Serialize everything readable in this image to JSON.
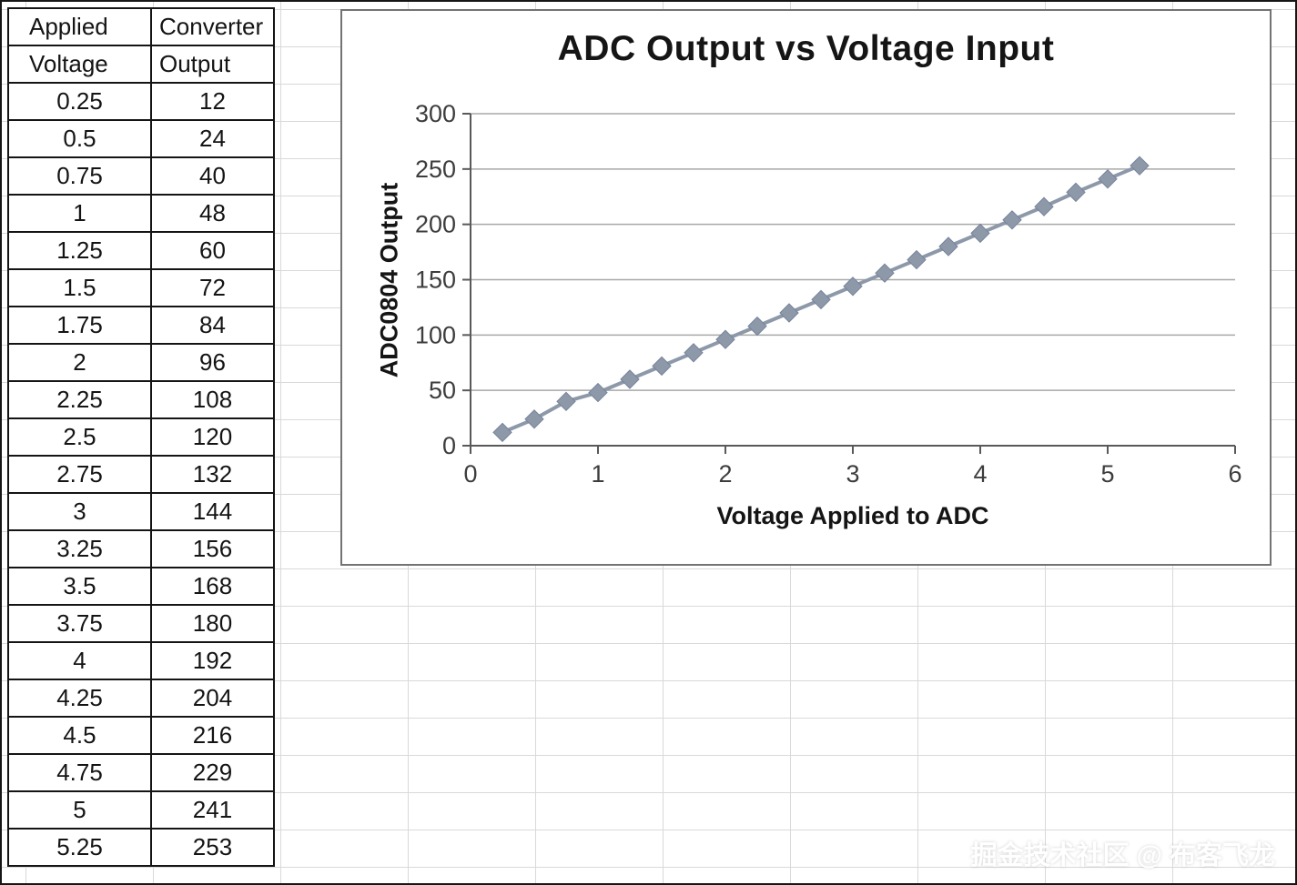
{
  "table": {
    "header": {
      "col1_line1": "Applied",
      "col1_line2": "Voltage",
      "col2_line1": "Converter",
      "col2_line2": "Output"
    },
    "rows": [
      {
        "voltage": "0.25",
        "output": "12"
      },
      {
        "voltage": "0.5",
        "output": "24"
      },
      {
        "voltage": "0.75",
        "output": "40"
      },
      {
        "voltage": "1",
        "output": "48"
      },
      {
        "voltage": "1.25",
        "output": "60"
      },
      {
        "voltage": "1.5",
        "output": "72"
      },
      {
        "voltage": "1.75",
        "output": "84"
      },
      {
        "voltage": "2",
        "output": "96"
      },
      {
        "voltage": "2.25",
        "output": "108"
      },
      {
        "voltage": "2.5",
        "output": "120"
      },
      {
        "voltage": "2.75",
        "output": "132"
      },
      {
        "voltage": "3",
        "output": "144"
      },
      {
        "voltage": "3.25",
        "output": "156"
      },
      {
        "voltage": "3.5",
        "output": "168"
      },
      {
        "voltage": "3.75",
        "output": "180"
      },
      {
        "voltage": "4",
        "output": "192"
      },
      {
        "voltage": "4.25",
        "output": "204"
      },
      {
        "voltage": "4.5",
        "output": "216"
      },
      {
        "voltage": "4.75",
        "output": "229"
      },
      {
        "voltage": "5",
        "output": "241"
      },
      {
        "voltage": "5.25",
        "output": "253"
      }
    ]
  },
  "chart_data": {
    "type": "line",
    "title": "ADC Output vs Voltage Input",
    "xlabel": "Voltage Applied to ADC",
    "ylabel": "ADC0804 Output",
    "x": [
      0.25,
      0.5,
      0.75,
      1,
      1.25,
      1.5,
      1.75,
      2,
      2.25,
      2.5,
      2.75,
      3,
      3.25,
      3.5,
      3.75,
      4,
      4.25,
      4.5,
      4.75,
      5,
      5.25
    ],
    "y": [
      12,
      24,
      40,
      48,
      60,
      72,
      84,
      96,
      108,
      120,
      132,
      144,
      156,
      168,
      180,
      192,
      204,
      216,
      229,
      241,
      253
    ],
    "xlim": [
      0,
      6
    ],
    "ylim": [
      0,
      300
    ],
    "x_ticks": [
      0,
      1,
      2,
      3,
      4,
      5,
      6
    ],
    "y_ticks": [
      0,
      50,
      100,
      150,
      200,
      250,
      300
    ],
    "grid": "horizontal",
    "legend": "none",
    "marker": "diamond",
    "series_color": "#8d99a9",
    "marker_edge_color": "#76839a",
    "gridline_color": "#a8a8a8",
    "axis_color": "#595959",
    "tick_label_color": "#3d3d3d"
  },
  "watermark": {
    "text": "掘金技术社区 @ 布客飞龙"
  }
}
